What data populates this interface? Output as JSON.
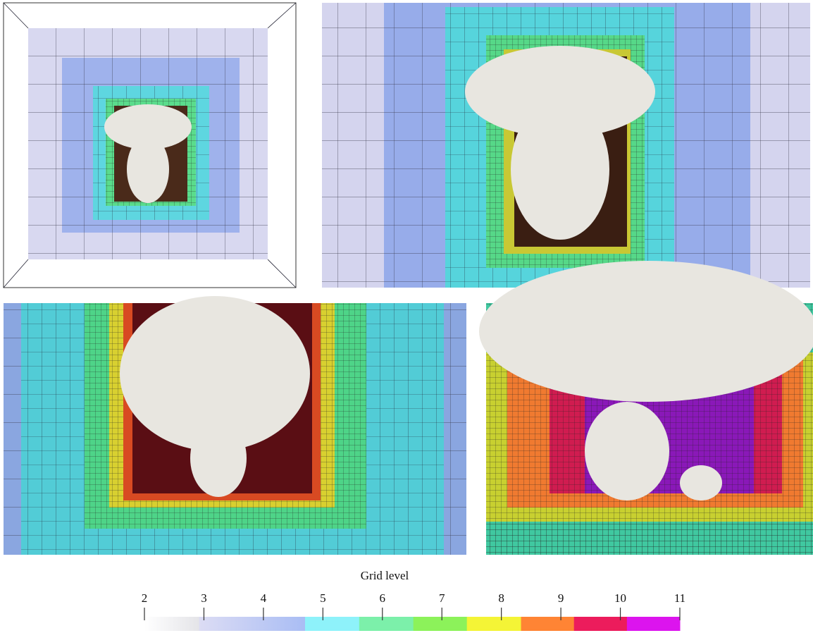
{
  "colorbar": {
    "label": "Grid level",
    "lim": [
      2,
      11
    ],
    "ticks": [
      2,
      3,
      4,
      5,
      6,
      7,
      8,
      9,
      10,
      11
    ],
    "segments": [
      {
        "from": 2,
        "to": 2.92,
        "color": "#ffffff",
        "color_end": "#e4e4e8"
      },
      {
        "from": 2.92,
        "to": 4.7,
        "color": "#dcdcf4",
        "color_end": "#a9bdf4"
      },
      {
        "from": 4.7,
        "to": 5.61,
        "color": "#8ef2fa"
      },
      {
        "from": 5.61,
        "to": 6.52,
        "color": "#7cf0aa"
      },
      {
        "from": 6.52,
        "to": 7.42,
        "color": "#8cf25a"
      },
      {
        "from": 7.42,
        "to": 8.33,
        "color": "#f4f436"
      },
      {
        "from": 8.33,
        "to": 9.22,
        "color": "#ff8434"
      },
      {
        "from": 9.22,
        "to": 10.11,
        "color": "#ec1c5c"
      },
      {
        "from": 10.11,
        "to": 11,
        "color": "#dc14ee"
      }
    ]
  }
}
